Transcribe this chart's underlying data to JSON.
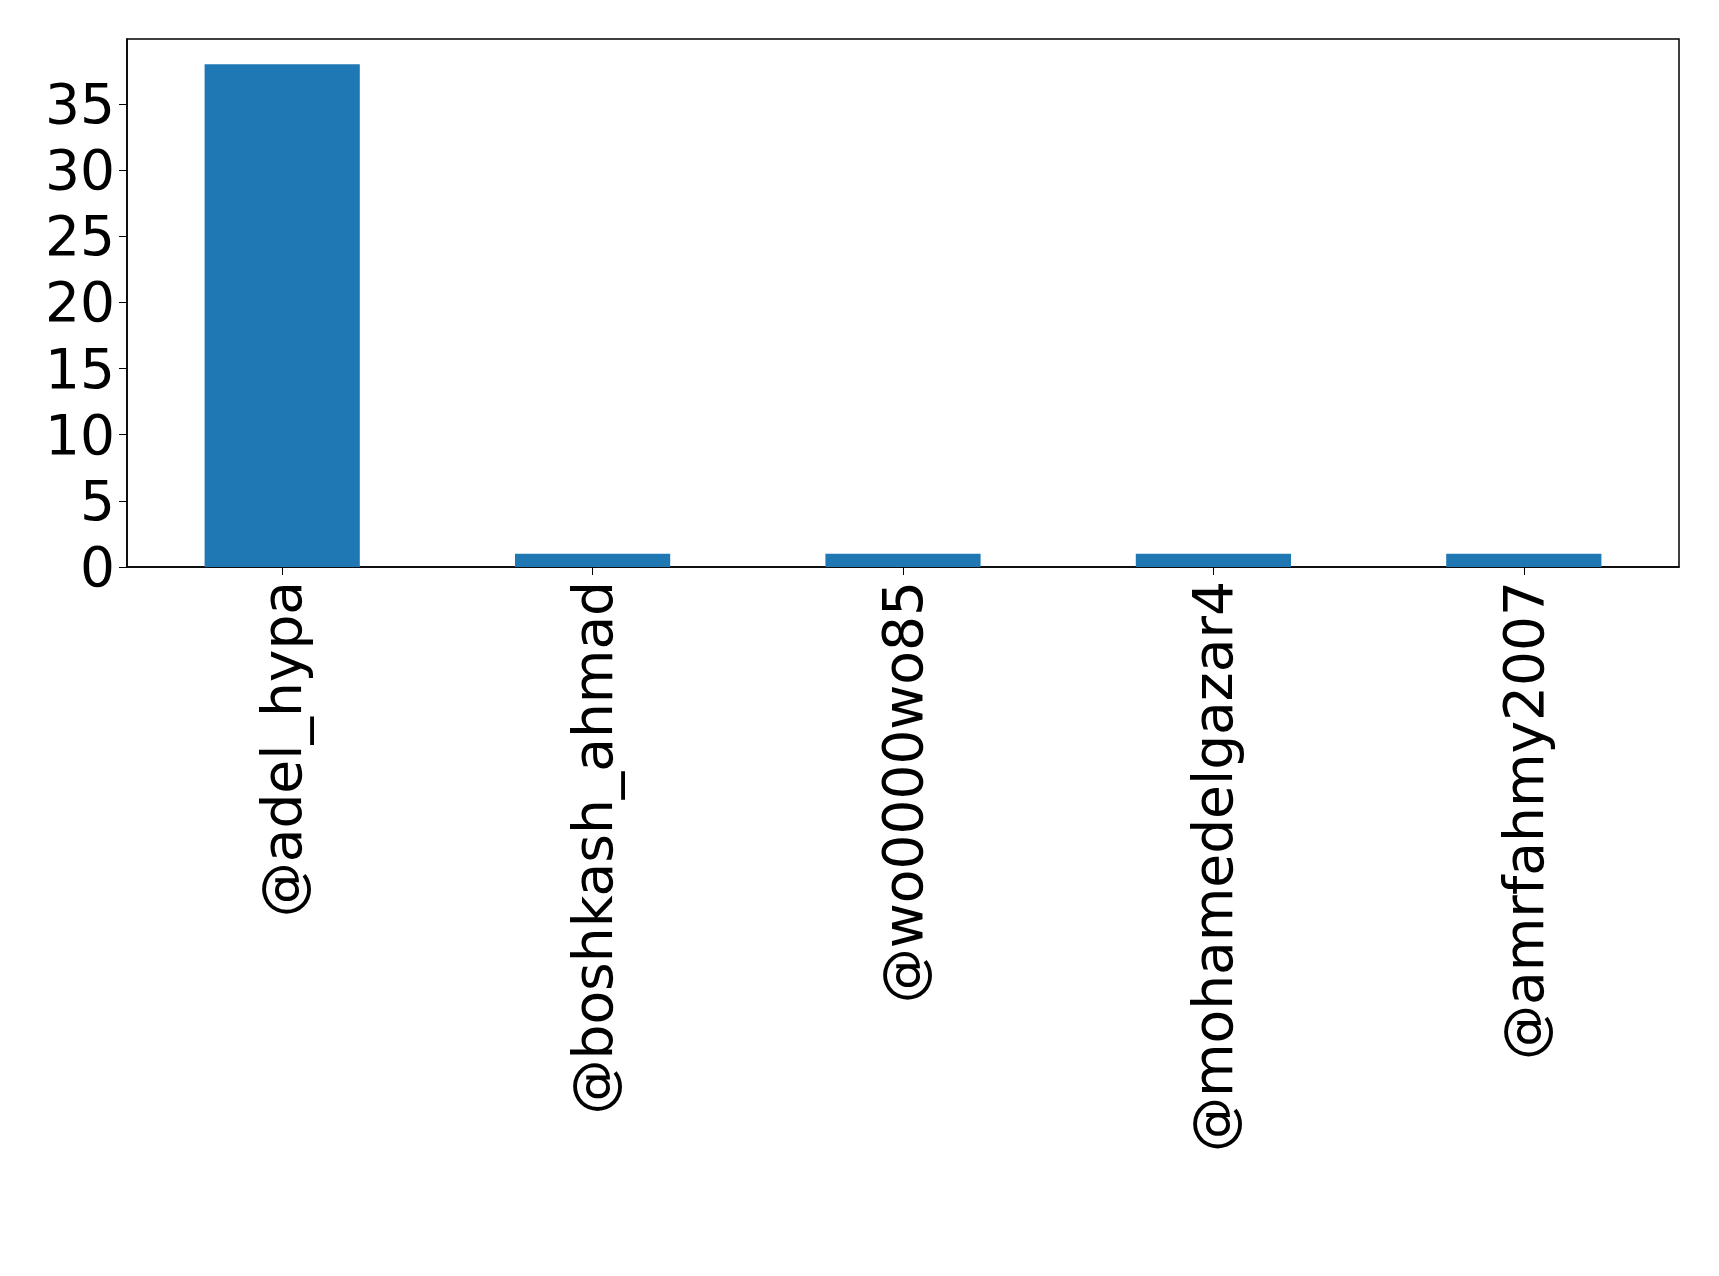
{
  "chart_data": {
    "type": "bar",
    "categories": [
      "@adel_hypa",
      "@boshkash_ahmad",
      "@wo0000wo85",
      "@mohamedelgazar4",
      "@amrfahmy2007"
    ],
    "values": [
      38,
      1,
      1,
      1,
      1
    ],
    "color": "#1f77b4",
    "ylim": [
      0,
      39.9
    ],
    "yticks": [
      0,
      5,
      10,
      15,
      20,
      25,
      30,
      35
    ],
    "grid": false
  }
}
